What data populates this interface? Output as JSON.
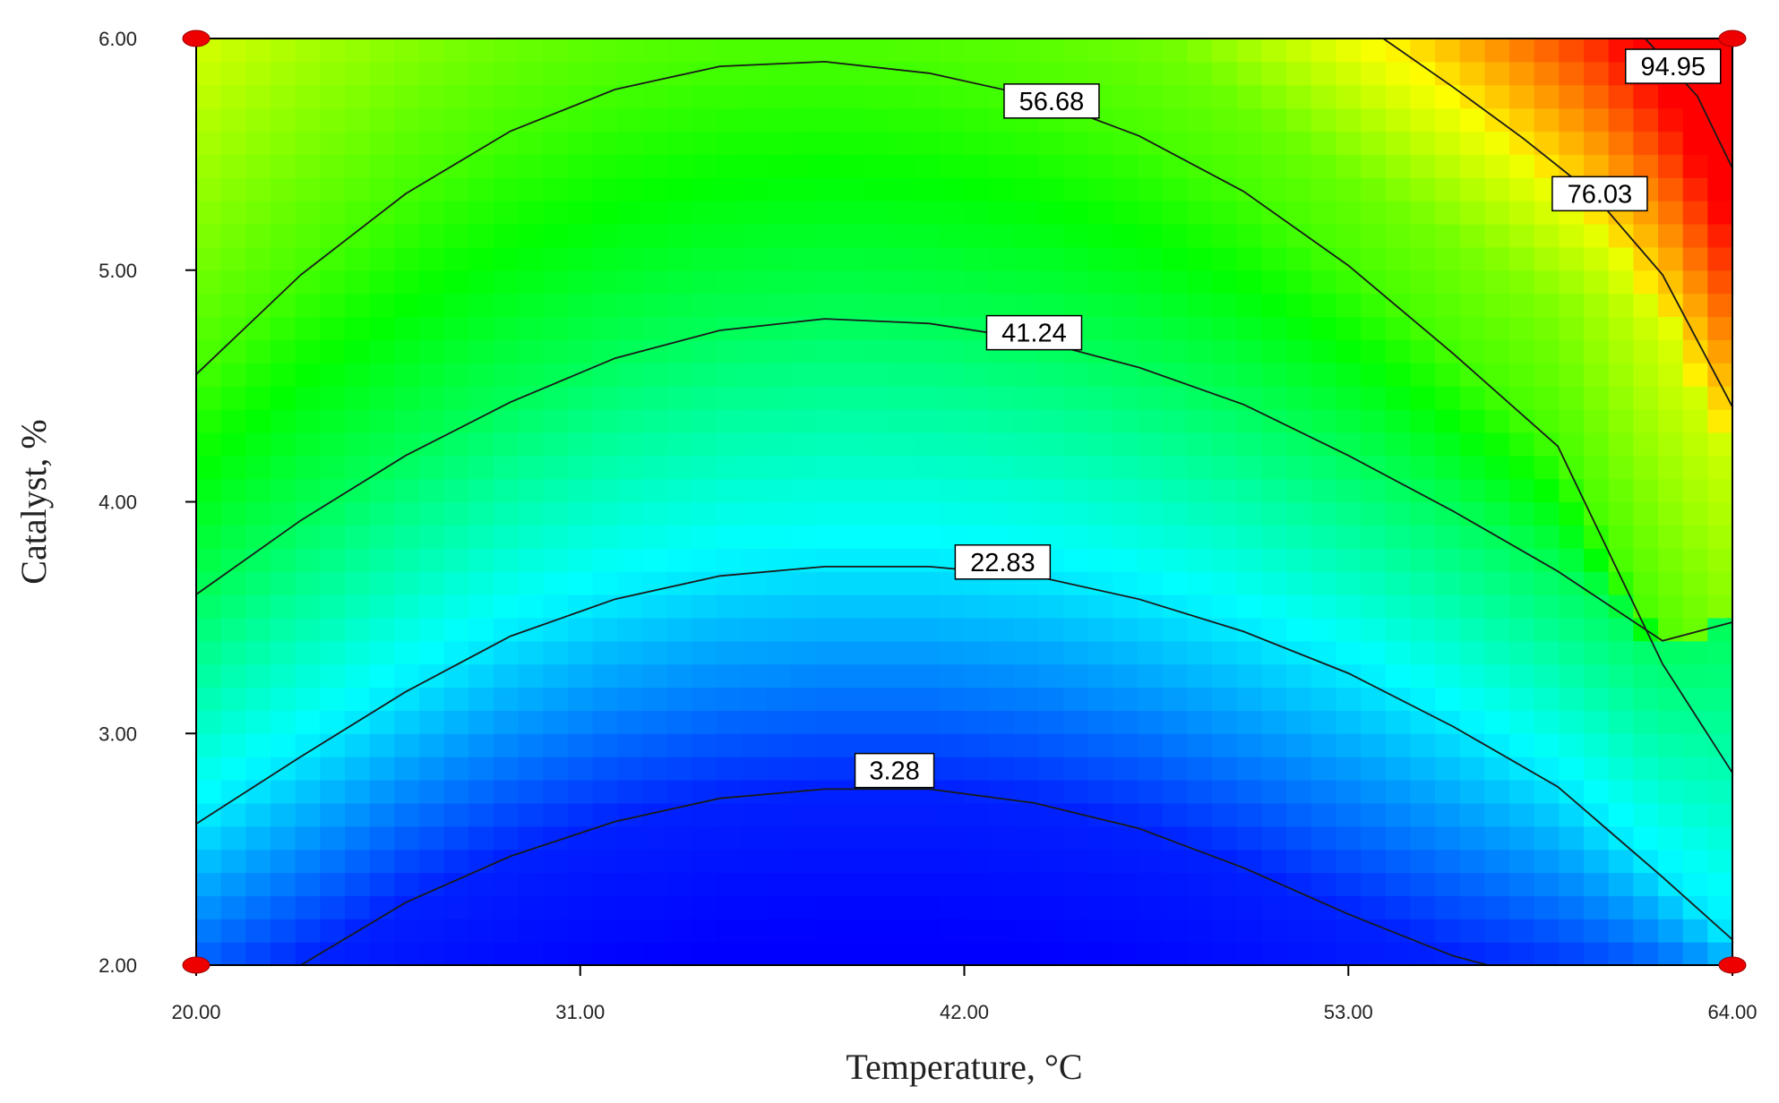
{
  "chart_data": {
    "type": "heatmap",
    "subtype": "contour",
    "title": "",
    "xlabel": "Temperature, °C",
    "ylabel": "Catalyst, %",
    "xlim": [
      20,
      64
    ],
    "ylim": [
      2,
      6
    ],
    "x_ticks": [
      "20.00",
      "31.00",
      "42.00",
      "53.00",
      "64.00"
    ],
    "y_ticks": [
      "2.00",
      "3.00",
      "4.00",
      "5.00",
      "6.00"
    ],
    "color_scale": [
      "#0000ff",
      "#00ffff",
      "#00ff00",
      "#ffff00",
      "#ff0000"
    ],
    "value_range": [
      0,
      100
    ],
    "grid": false,
    "legend": "none",
    "contours": [
      {
        "label": "3.28",
        "label_at": [
          40.0,
          2.84
        ],
        "points": [
          [
            23.0,
            2.0
          ],
          [
            26.0,
            2.27
          ],
          [
            29.0,
            2.47
          ],
          [
            32.0,
            2.62
          ],
          [
            35.0,
            2.72
          ],
          [
            38.0,
            2.76
          ],
          [
            41.0,
            2.76
          ],
          [
            44.0,
            2.7
          ],
          [
            47.0,
            2.59
          ],
          [
            50.0,
            2.42
          ],
          [
            53.0,
            2.22
          ],
          [
            56.0,
            2.04
          ],
          [
            57.0,
            2.0
          ]
        ]
      },
      {
        "label": "22.83",
        "label_at": [
          43.1,
          3.74
        ],
        "points": [
          [
            20.0,
            2.61
          ],
          [
            23.0,
            2.9
          ],
          [
            26.0,
            3.18
          ],
          [
            29.0,
            3.42
          ],
          [
            32.0,
            3.58
          ],
          [
            35.0,
            3.68
          ],
          [
            38.0,
            3.72
          ],
          [
            41.0,
            3.72
          ],
          [
            44.0,
            3.68
          ],
          [
            47.0,
            3.58
          ],
          [
            50.0,
            3.44
          ],
          [
            53.0,
            3.26
          ],
          [
            56.0,
            3.03
          ],
          [
            59.0,
            2.77
          ],
          [
            62.0,
            2.38
          ],
          [
            64.0,
            2.11
          ]
        ]
      },
      {
        "label": "41.24",
        "label_at": [
          44.0,
          4.73
        ],
        "points": [
          [
            20.0,
            3.6
          ],
          [
            23.0,
            3.92
          ],
          [
            26.0,
            4.2
          ],
          [
            29.0,
            4.43
          ],
          [
            32.0,
            4.62
          ],
          [
            35.0,
            4.74
          ],
          [
            38.0,
            4.79
          ],
          [
            41.0,
            4.77
          ],
          [
            44.0,
            4.7
          ],
          [
            47.0,
            4.58
          ],
          [
            50.0,
            4.42
          ],
          [
            53.0,
            4.2
          ],
          [
            56.0,
            3.96
          ],
          [
            59.0,
            3.7
          ],
          [
            62.0,
            3.4
          ],
          [
            64.0,
            3.48
          ]
        ]
      },
      {
        "label": "56.68",
        "label_at": [
          44.5,
          5.73
        ],
        "points": [
          [
            20.0,
            4.55
          ],
          [
            23.0,
            4.98
          ],
          [
            26.0,
            5.33
          ],
          [
            29.0,
            5.6
          ],
          [
            32.0,
            5.78
          ],
          [
            35.0,
            5.88
          ],
          [
            38.0,
            5.9
          ],
          [
            41.0,
            5.85
          ],
          [
            44.0,
            5.75
          ],
          [
            47.0,
            5.58
          ],
          [
            50.0,
            5.34
          ],
          [
            53.0,
            5.02
          ],
          [
            56.0,
            4.64
          ],
          [
            59.0,
            4.24
          ],
          [
            62.0,
            3.3
          ],
          [
            64.0,
            2.83
          ]
        ]
      },
      {
        "label": "76.03",
        "label_at": [
          60.2,
          5.33
        ],
        "points": [
          [
            54.0,
            6.0
          ],
          [
            56.0,
            5.79
          ],
          [
            58.0,
            5.57
          ],
          [
            60.0,
            5.33
          ],
          [
            62.0,
            4.98
          ],
          [
            64.0,
            4.41
          ]
        ]
      },
      {
        "label": "94.95",
        "label_at": [
          62.3,
          5.88
        ],
        "points": [
          [
            61.5,
            6.0
          ],
          [
            63.0,
            5.75
          ],
          [
            64.0,
            5.44
          ]
        ]
      }
    ],
    "design_points": [
      [
        20,
        6
      ],
      [
        64,
        6
      ],
      [
        20,
        2
      ],
      [
        64,
        2
      ]
    ]
  }
}
